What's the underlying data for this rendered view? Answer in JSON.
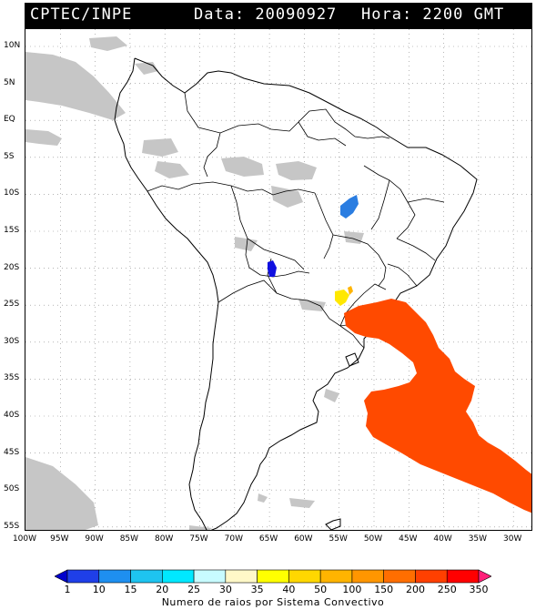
{
  "header": {
    "agency": "CPTEC/INPE",
    "date_label": "Data: 20090927",
    "time_label": "Hora: 2200 GMT"
  },
  "map": {
    "lat_labels": [
      "10N",
      "5N",
      "EQ",
      "5S",
      "10S",
      "15S",
      "20S",
      "25S",
      "30S",
      "35S",
      "40S",
      "45S",
      "50S",
      "55S"
    ],
    "lon_labels": [
      "100W",
      "95W",
      "90W",
      "85W",
      "80W",
      "75W",
      "70W",
      "65W",
      "60W",
      "55W",
      "50W",
      "45W",
      "40W",
      "35W",
      "30W"
    ]
  },
  "legend": {
    "values": [
      "1",
      "10",
      "15",
      "20",
      "25",
      "30",
      "35",
      "40",
      "50",
      "100",
      "150",
      "200",
      "250",
      "350"
    ],
    "colors": [
      "#0000cc",
      "#1f3fe8",
      "#1e8ff0",
      "#1ec4f0",
      "#00e8ff",
      "#c8fbff",
      "#fff8c8",
      "#ffff00",
      "#ffd700",
      "#ffb400",
      "#ff9600",
      "#ff6e00",
      "#ff4000",
      "#ff0000",
      "#ff1f7a"
    ],
    "caption": "Numero de raios por Sistema Convectivo"
  },
  "colors": {
    "land_border": "#000000",
    "cloud": "#bdbdbd",
    "cluster_main": "#ff4a00",
    "cluster_blue_dark": "#1010e0",
    "cluster_blue_light": "#2a7de1",
    "cluster_yellow": "#ffe800"
  }
}
